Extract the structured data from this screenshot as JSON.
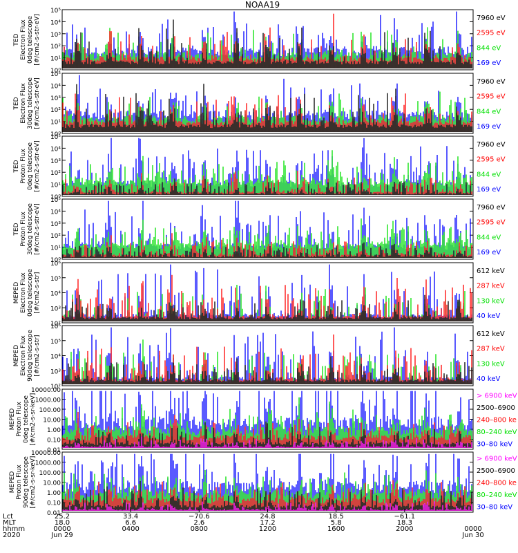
{
  "chart_data": {
    "type": "line",
    "title": "NOAA19",
    "x_range": [
      "2020 Jun 29 00:00",
      "2020 Jun 30 00:00"
    ],
    "x_ticks": [
      {
        "hhmm": "0000",
        "lct": "25.2",
        "mlt": "18.0",
        "date": "Jun 29"
      },
      {
        "hhmm": "0400",
        "lct": "33.4",
        "mlt": "6.6",
        "date": ""
      },
      {
        "hhmm": "0800",
        "lct": "−70.6",
        "mlt": "2.6",
        "date": ""
      },
      {
        "hhmm": "1200",
        "lct": "24.8",
        "mlt": "17.2",
        "date": ""
      },
      {
        "hhmm": "1600",
        "lct": "18.5",
        "mlt": "5.8",
        "date": ""
      },
      {
        "hhmm": "2000",
        "lct": "−61.1",
        "mlt": "18.3",
        "date": ""
      },
      {
        "hhmm": "0000",
        "lct": "",
        "mlt": "",
        "date": "Jun 30"
      }
    ],
    "row_labels": [
      "Lct",
      "MLT",
      "hhmm",
      "2020"
    ],
    "panels": [
      {
        "ylabel": [
          "TED",
          "Electron Flux",
          "0deg telescope",
          "[#/cm2-s-str-eV]"
        ],
        "scale": "log",
        "yticks": [
          "10⁵",
          "10⁴",
          "10³",
          "10²",
          "10¹",
          "10⁰"
        ],
        "legend": [
          {
            "name": "7960 eV",
            "color": "#000000"
          },
          {
            "name": "2595 eV",
            "color": "#ff0000"
          },
          {
            "name": "844 eV",
            "color": "#00e000"
          },
          {
            "name": "169 eV",
            "color": "#0000ff"
          }
        ]
      },
      {
        "ylabel": [
          "TED",
          "Electron Flux",
          "30deg telescope",
          "[#/cm2-s-str-eV]"
        ],
        "scale": "log",
        "yticks": [
          "10⁵",
          "10⁴",
          "10³",
          "10²",
          "10¹",
          "10⁰"
        ],
        "legend": [
          {
            "name": "7960 eV",
            "color": "#000000"
          },
          {
            "name": "2595 eV",
            "color": "#ff0000"
          },
          {
            "name": "844 eV",
            "color": "#00e000"
          },
          {
            "name": "169 eV",
            "color": "#0000ff"
          }
        ]
      },
      {
        "ylabel": [
          "TED",
          "Proton Flux",
          "0deg telescope",
          "[#/cm2-s-str-eV]"
        ],
        "scale": "log",
        "yticks": [
          "10⁵",
          "10⁴",
          "10³",
          "10²",
          "10¹",
          "10⁰"
        ],
        "legend": [
          {
            "name": "7960 eV",
            "color": "#000000"
          },
          {
            "name": "2595 eV",
            "color": "#ff0000"
          },
          {
            "name": "844 eV",
            "color": "#00e000"
          },
          {
            "name": "169 eV",
            "color": "#0000ff"
          }
        ]
      },
      {
        "ylabel": [
          "TED",
          "Proton Flux",
          "30deg telescope",
          "[#/cm2-s-str-eV]"
        ],
        "scale": "log",
        "yticks": [
          "10⁵",
          "10⁴",
          "10³",
          "10²",
          "10¹",
          "10⁰"
        ],
        "legend": [
          {
            "name": "7960 eV",
            "color": "#000000"
          },
          {
            "name": "2595 eV",
            "color": "#ff0000"
          },
          {
            "name": "844 eV",
            "color": "#00e000"
          },
          {
            "name": "169 eV",
            "color": "#0000ff"
          }
        ]
      },
      {
        "ylabel": [
          "MEPED",
          "Electron Flux",
          "0deg telescope",
          "[#/cm2-s-str]"
        ],
        "scale": "log",
        "yticks": [
          "10⁶",
          "10⁵",
          "10⁴",
          "10³",
          "10²"
        ],
        "legend": [
          {
            "name": "612 keV",
            "color": "#000000"
          },
          {
            "name": "287 keV",
            "color": "#ff0000"
          },
          {
            "name": "130 keV",
            "color": "#00e000"
          },
          {
            "name": "40 keV",
            "color": "#0000ff"
          }
        ]
      },
      {
        "ylabel": [
          "MEPED",
          "Electron Flux",
          "90deg telescope",
          "[#/cm2-s-str]"
        ],
        "scale": "log",
        "yticks": [
          "10⁶",
          "10⁵",
          "10⁴",
          "10³",
          "10²"
        ],
        "legend": [
          {
            "name": "612 keV",
            "color": "#000000"
          },
          {
            "name": "287 keV",
            "color": "#ff0000"
          },
          {
            "name": "130 keV",
            "color": "#00e000"
          },
          {
            "name": "40 keV",
            "color": "#0000ff"
          }
        ]
      },
      {
        "ylabel": [
          "MEPED",
          "Proton Flux",
          "0deg telescope",
          "[#/cm2-s-sr-keV]"
        ],
        "scale": "log",
        "yticks": [
          "10000.00",
          "1000.00",
          "100.00",
          "10.00",
          "1.00",
          "0.10",
          "0.01"
        ],
        "legend": [
          {
            "name": "> 6900 keV",
            "color": "#ff00ff"
          },
          {
            "name": "2500–6900",
            "color": "#000000"
          },
          {
            "name": "240–800 ke",
            "color": "#ff0000"
          },
          {
            "name": "80–240 keV",
            "color": "#00e000"
          },
          {
            "name": "30–80 keV",
            "color": "#0000ff"
          }
        ]
      },
      {
        "ylabel": [
          "MEPED",
          "Proton Flux",
          "90deg telescope",
          "[#/cm2-s-sr-keV]"
        ],
        "scale": "log",
        "yticks": [
          "10000.00",
          "1000.00",
          "100.00",
          "10.00",
          "1.00",
          "0.10",
          "0.01"
        ],
        "legend": [
          {
            "name": "> 6900 keV",
            "color": "#ff00ff"
          },
          {
            "name": "2500–6900",
            "color": "#000000"
          },
          {
            "name": "240–800 ke",
            "color": "#ff0000"
          },
          {
            "name": "80–240 keV",
            "color": "#00e000"
          },
          {
            "name": "30–80 keV",
            "color": "#0000ff"
          }
        ]
      }
    ]
  }
}
